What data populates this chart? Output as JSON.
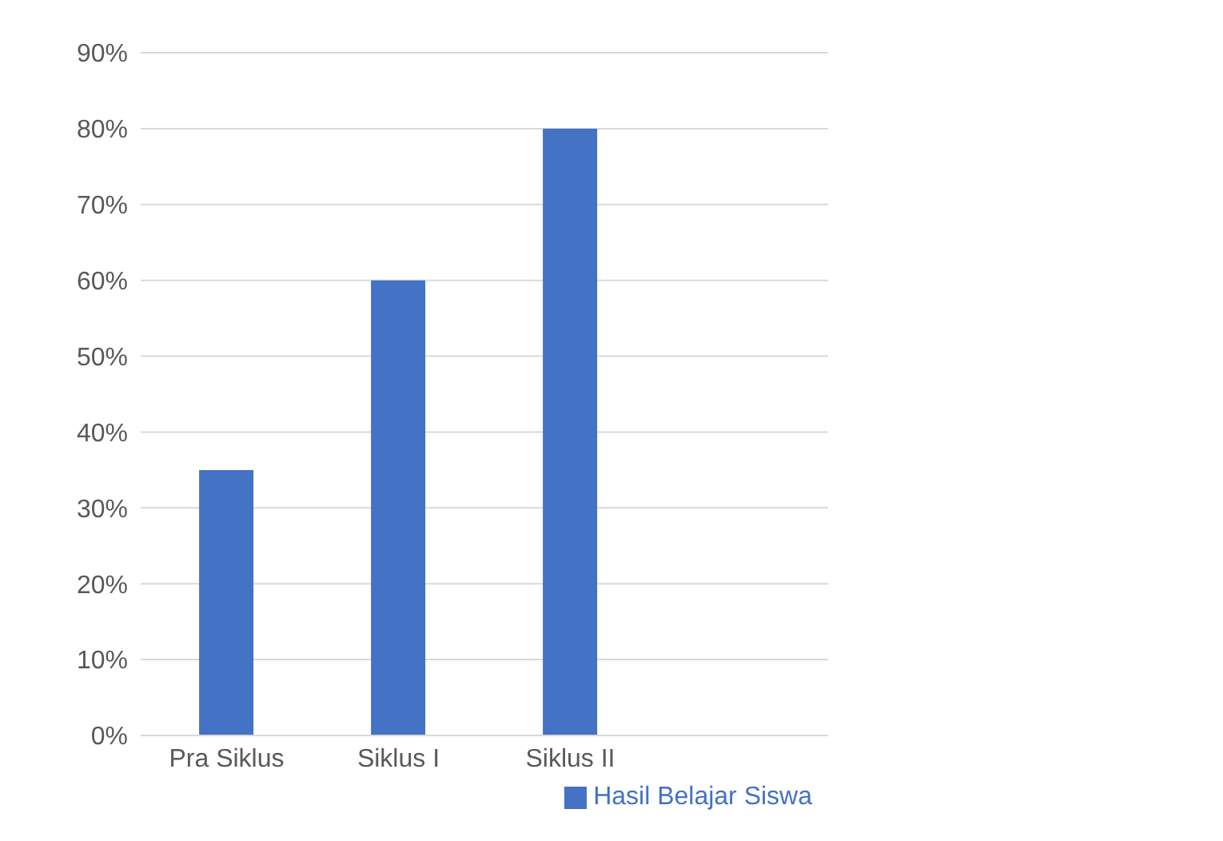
{
  "chart_data": {
    "type": "bar",
    "categories": [
      "Pra Siklus",
      "Siklus I",
      "Siklus II",
      null
    ],
    "series": [
      {
        "name": "Hasil Belajar Siswa",
        "color": "#4472c4",
        "values": [
          35,
          60,
          80,
          null
        ]
      }
    ],
    "ylim": [
      0,
      90
    ],
    "yticks": [
      {
        "value": 0,
        "label": "0%"
      },
      {
        "value": 10,
        "label": "10%"
      },
      {
        "value": 20,
        "label": "20%"
      },
      {
        "value": 30,
        "label": "30%"
      },
      {
        "value": 40,
        "label": "40%"
      },
      {
        "value": 50,
        "label": "50%"
      },
      {
        "value": 60,
        "label": "60%"
      },
      {
        "value": 70,
        "label": "70%"
      },
      {
        "value": 80,
        "label": "80%"
      },
      {
        "value": 90,
        "label": "90%"
      }
    ],
    "grid": "y",
    "legend": "bottom right"
  }
}
